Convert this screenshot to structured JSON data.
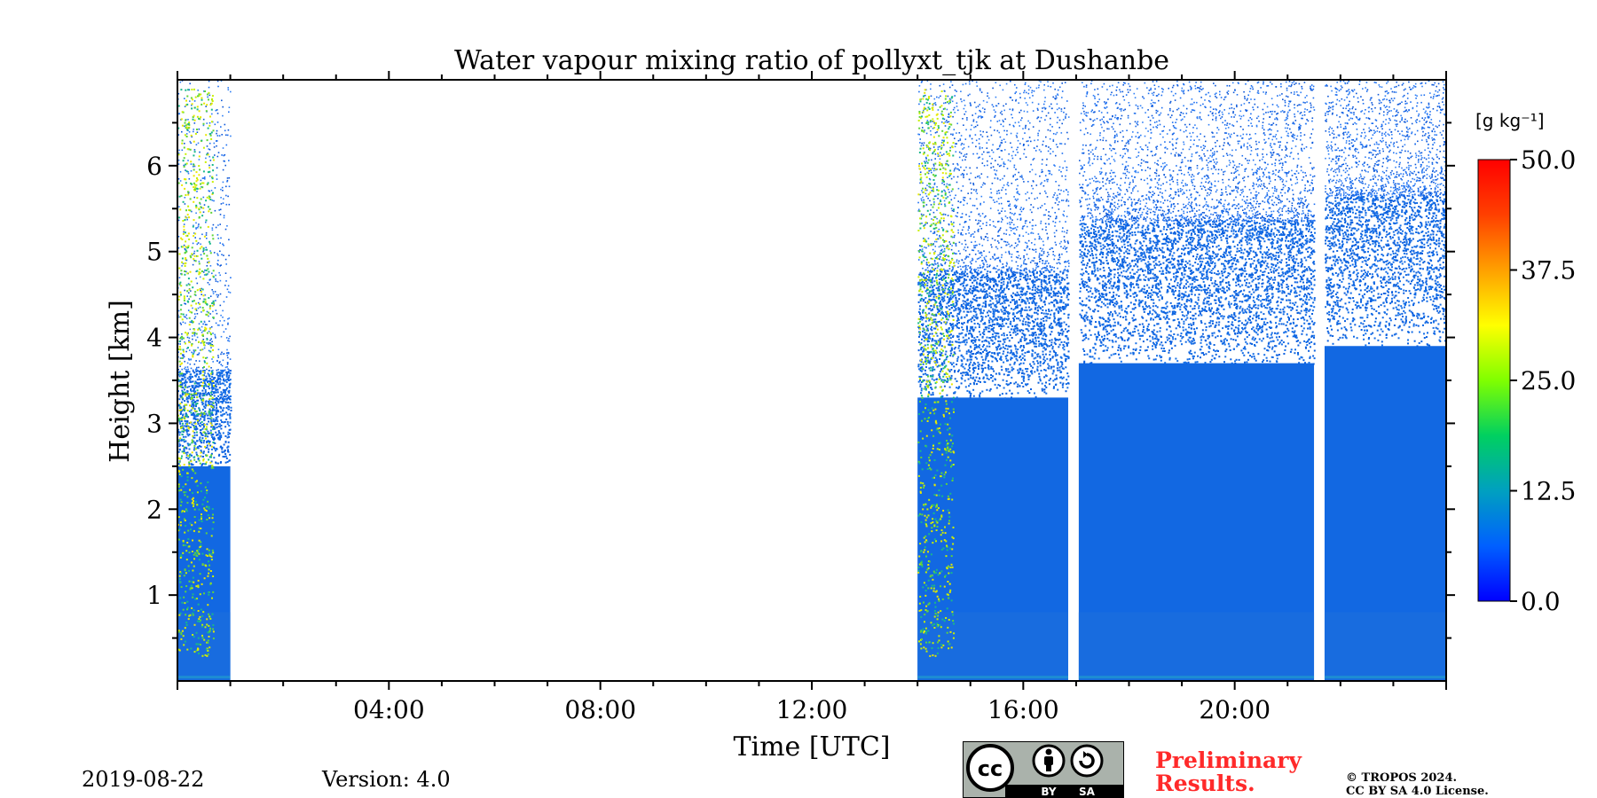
{
  "chart_data": {
    "type": "heatmap",
    "title": "Water vapour mixing ratio of pollyxt_tjk at Dushanbe",
    "xlabel": "Time [UTC]",
    "ylabel": "Height [km]",
    "x_unit": "hours UTC",
    "xlim": [
      0,
      24
    ],
    "ylim": [
      0,
      7
    ],
    "x_ticks": [
      {
        "value": 4,
        "label": "04:00"
      },
      {
        "value": 8,
        "label": "08:00"
      },
      {
        "value": 12,
        "label": "12:00"
      },
      {
        "value": 16,
        "label": "16:00"
      },
      {
        "value": 20,
        "label": "20:00"
      }
    ],
    "y_ticks": [
      {
        "value": 1,
        "label": "1"
      },
      {
        "value": 2,
        "label": "2"
      },
      {
        "value": 3,
        "label": "3"
      },
      {
        "value": 4,
        "label": "4"
      },
      {
        "value": 5,
        "label": "5"
      },
      {
        "value": 6,
        "label": "6"
      }
    ],
    "colorbar": {
      "label": "[g kg⁻¹]",
      "range": [
        0,
        50
      ],
      "colors": [
        "#0000ff",
        "#0060ff",
        "#00a0c0",
        "#00d060",
        "#80ff00",
        "#ffff00",
        "#ffa000",
        "#ff4000",
        "#ff0000"
      ],
      "ticks": [
        {
          "value": 0,
          "label": "0.0"
        },
        {
          "value": 12.5,
          "label": "12.5"
        },
        {
          "value": 25,
          "label": "25.0"
        },
        {
          "value": 37.5,
          "label": "37.5"
        },
        {
          "value": 50,
          "label": "50.0"
        }
      ]
    },
    "data_segments": [
      {
        "start": 0.0,
        "end": 1.0,
        "dense_top_km": 2.5,
        "sparse_top_km": 7.0,
        "moist_edge": true
      },
      {
        "start": 14.0,
        "end": 16.85,
        "dense_top_km": 3.3,
        "sparse_top_km": 7.0,
        "moist_edge": true
      },
      {
        "start": 17.05,
        "end": 21.5,
        "dense_top_km": 3.7,
        "sparse_top_km": 7.0,
        "moist_edge": false
      },
      {
        "start": 21.7,
        "end": 24.0,
        "dense_top_km": 3.9,
        "sparse_top_km": 7.0,
        "moist_edge": false
      }
    ]
  },
  "footer": {
    "date": "2019-08-22",
    "version": "Version: 4.0",
    "preliminary_line1": "Preliminary",
    "preliminary_line2": "Results.",
    "copyright_line1": "© TROPOS 2024.",
    "copyright_line2": "CC BY SA 4.0 License.",
    "license_badge": {
      "cc": "cc",
      "by": "BY",
      "sa": "SA"
    }
  }
}
